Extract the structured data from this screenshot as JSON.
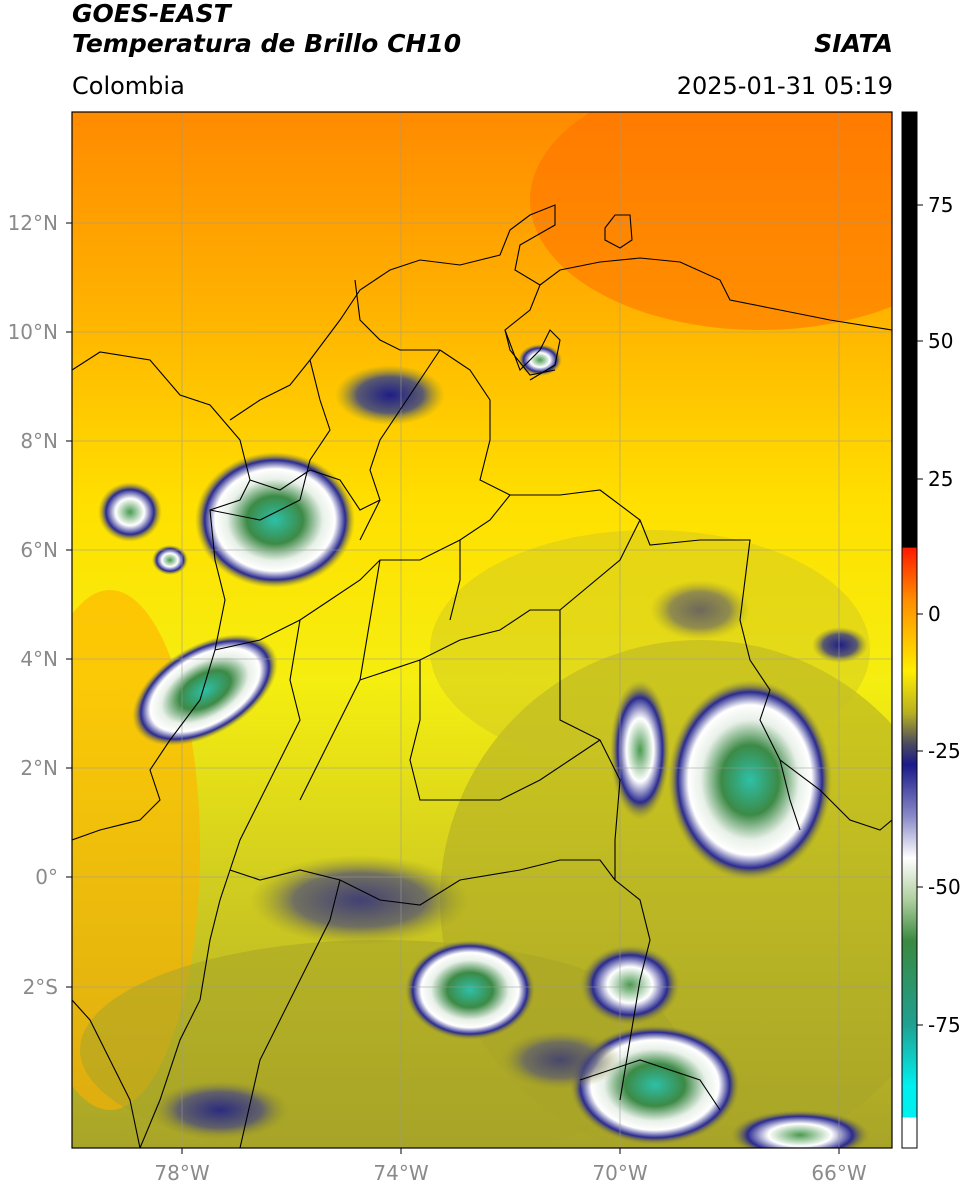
{
  "header": {
    "satellite": "GOES-EAST",
    "product": "Temperatura de Brillo CH10",
    "region": "Colombia",
    "agency": "SIATA",
    "datetime": "2025-01-31 05:19"
  },
  "map": {
    "lon_ticks": [
      "78°W",
      "74°W",
      "70°W",
      "66°W"
    ],
    "lat_ticks": [
      "12°N",
      "10°N",
      "8°N",
      "6°N",
      "4°N",
      "2°N",
      "0°",
      "2°S"
    ],
    "extent": {
      "lon_min": -80,
      "lon_max": -65,
      "lat_min": -5,
      "lat_max": 14
    }
  },
  "colorbar": {
    "ticks": [
      "75",
      "50",
      "25",
      "0",
      "-25",
      "-50",
      "-75"
    ],
    "colors": {
      "warm": "#000000",
      "red": "#ff2200",
      "orange": "#ff8c00",
      "yellow": "#ffee00",
      "olive": "#9a9a20",
      "navy": "#1a1a8a",
      "white": "#ffffff",
      "green": "#3a8a40",
      "teal": "#20c0b0",
      "cyan": "#00f0f0"
    }
  }
}
